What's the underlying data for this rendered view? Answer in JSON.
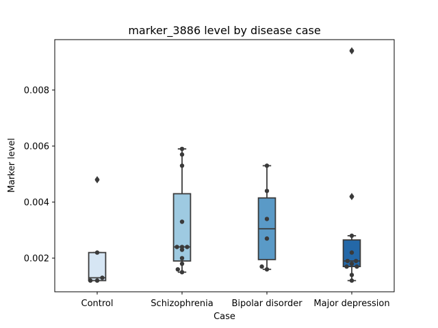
{
  "chart_data": {
    "type": "box",
    "title": "marker_3886 level by disease case",
    "xlabel": "Case",
    "ylabel": "Marker level",
    "ylim": [
      0.0008,
      0.0098
    ],
    "yticks": [
      0.002,
      0.004,
      0.006,
      0.008
    ],
    "ytick_labels": [
      "0.002",
      "0.004",
      "0.006",
      "0.008"
    ],
    "grid": false,
    "categories": [
      "Control",
      "Schizophrenia",
      "Bipolar disorder",
      "Major depression"
    ],
    "colors": [
      "#d6e6f4",
      "#9ecae1",
      "#5a9ac7",
      "#2468a8"
    ],
    "boxes": [
      {
        "category": "Control",
        "whisker_low": 0.0012,
        "q1": 0.0012,
        "median": 0.0013,
        "q3": 0.0022,
        "whisker_high": 0.0022,
        "outliers": [
          0.0048
        ]
      },
      {
        "category": "Schizophrenia",
        "whisker_low": 0.0015,
        "q1": 0.0019,
        "median": 0.0024,
        "q3": 0.0043,
        "whisker_high": 0.0059,
        "outliers": []
      },
      {
        "category": "Bipolar disorder",
        "whisker_low": 0.0016,
        "q1": 0.00195,
        "median": 0.00305,
        "q3": 0.00415,
        "whisker_high": 0.0053,
        "outliers": []
      },
      {
        "category": "Major depression",
        "whisker_low": 0.0012,
        "q1": 0.0017,
        "median": 0.0019,
        "q3": 0.00265,
        "whisker_high": 0.0028,
        "outliers": [
          0.0042,
          0.0094
        ]
      }
    ],
    "points": [
      {
        "category": "Control",
        "values": [
          0.0012,
          0.0012,
          0.0013,
          0.0022,
          0.0048
        ],
        "offsets": [
          -0.08,
          0.0,
          0.06,
          0.0,
          0.0
        ]
      },
      {
        "category": "Schizophrenia",
        "values": [
          0.0015,
          0.0016,
          0.0018,
          0.002,
          0.0023,
          0.0024,
          0.0024,
          0.0024,
          0.0033,
          0.0053,
          0.0057,
          0.0059
        ],
        "offsets": [
          0.0,
          -0.05,
          0.0,
          0.0,
          0.0,
          -0.06,
          0.0,
          0.06,
          0.0,
          0.0,
          0.0,
          0.0
        ]
      },
      {
        "category": "Bipolar disorder",
        "values": [
          0.0016,
          0.0017,
          0.0027,
          0.0034,
          0.0044,
          0.0053
        ],
        "offsets": [
          0.0,
          -0.06,
          0.0,
          0.0,
          0.0,
          0.0
        ]
      },
      {
        "category": "Major depression",
        "values": [
          0.0012,
          0.0014,
          0.0017,
          0.0017,
          0.0018,
          0.0019,
          0.0019,
          0.0022,
          0.0028,
          0.0042,
          0.0094
        ],
        "offsets": [
          0.0,
          0.0,
          -0.06,
          0.06,
          0.0,
          -0.05,
          0.05,
          0.0,
          0.0,
          0.0,
          0.0
        ]
      }
    ]
  }
}
